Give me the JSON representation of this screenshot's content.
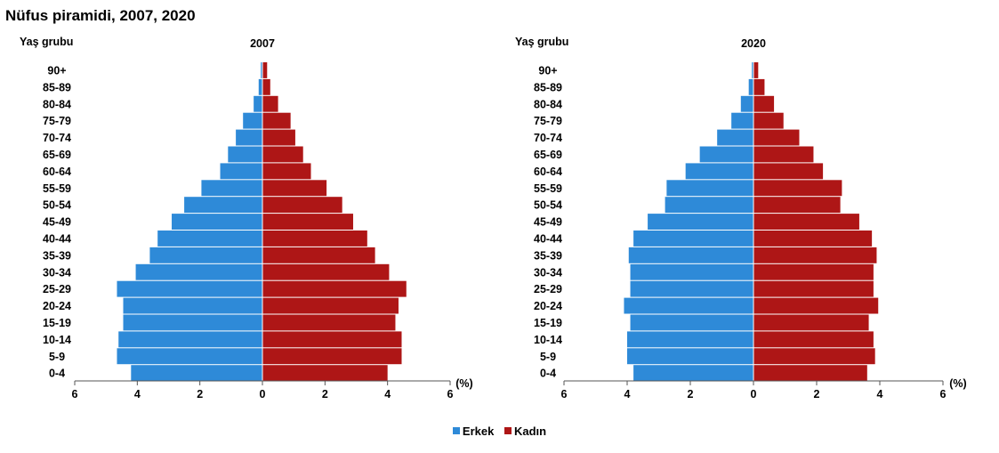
{
  "title": "Nüfus piramidi, 2007, 2020",
  "legend": {
    "male_label": "Erkek",
    "female_label": "Kadın"
  },
  "colors": {
    "male": "#2E8AD8",
    "female": "#AE1616",
    "axis": "#555555"
  },
  "chart_data": [
    {
      "type": "bar",
      "orientation": "horizontal-pyramid",
      "title": "2007",
      "ylabel": "Yaş grubu",
      "xlabel": "(%)",
      "xlim": [
        -6,
        6
      ],
      "xticks": [
        "6",
        "4",
        "2",
        "0",
        "2",
        "4",
        "6"
      ],
      "categories": [
        "90+",
        "85-89",
        "80-84",
        "75-79",
        "70-74",
        "65-69",
        "60-64",
        "55-59",
        "50-54",
        "45-49",
        "40-44",
        "35-39",
        "30-34",
        "25-29",
        "20-24",
        "15-19",
        "10-14",
        "5-9",
        "0-4"
      ],
      "series": [
        {
          "name": "Erkek",
          "values": [
            0.05,
            0.12,
            0.28,
            0.62,
            0.85,
            1.1,
            1.35,
            1.95,
            2.5,
            2.9,
            3.35,
            3.6,
            4.05,
            4.65,
            4.45,
            4.45,
            4.6,
            4.65,
            4.2
          ]
        },
        {
          "name": "Kadın",
          "values": [
            0.15,
            0.25,
            0.5,
            0.9,
            1.05,
            1.3,
            1.55,
            2.05,
            2.55,
            2.9,
            3.35,
            3.6,
            4.05,
            4.6,
            4.35,
            4.25,
            4.45,
            4.45,
            4.0
          ]
        }
      ]
    },
    {
      "type": "bar",
      "orientation": "horizontal-pyramid",
      "title": "2020",
      "ylabel": "Yaş grubu",
      "xlabel": "(%)",
      "xlim": [
        -6,
        6
      ],
      "xticks": [
        "6",
        "4",
        "2",
        "0",
        "2",
        "4",
        "6"
      ],
      "categories": [
        "90+",
        "85-89",
        "80-84",
        "75-79",
        "70-74",
        "65-69",
        "60-64",
        "55-59",
        "50-54",
        "45-49",
        "40-44",
        "35-39",
        "30-34",
        "25-29",
        "20-24",
        "15-19",
        "10-14",
        "5-9",
        "0-4"
      ],
      "series": [
        {
          "name": "Erkek",
          "values": [
            0.05,
            0.15,
            0.4,
            0.7,
            1.15,
            1.7,
            2.15,
            2.75,
            2.8,
            3.35,
            3.8,
            3.95,
            3.9,
            3.9,
            4.1,
            3.9,
            4.0,
            4.0,
            3.8
          ]
        },
        {
          "name": "Kadın",
          "values": [
            0.15,
            0.35,
            0.65,
            0.95,
            1.45,
            1.9,
            2.2,
            2.8,
            2.75,
            3.35,
            3.75,
            3.9,
            3.8,
            3.8,
            3.95,
            3.65,
            3.8,
            3.85,
            3.6
          ]
        }
      ]
    }
  ]
}
